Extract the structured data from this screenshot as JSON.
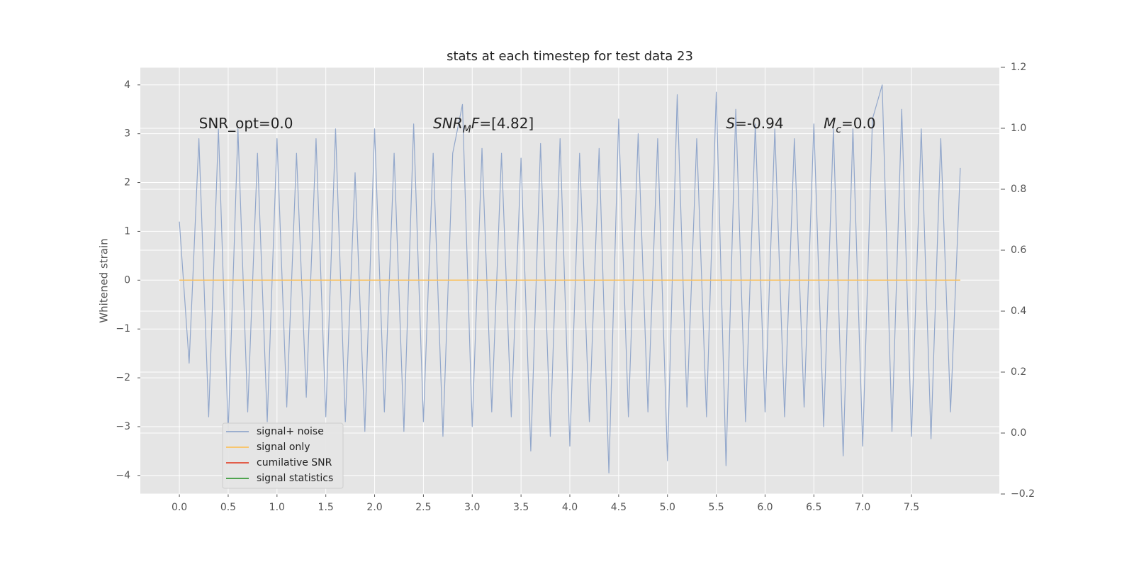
{
  "chart_data": {
    "type": "line",
    "title": "stats at each timestep for test data 23",
    "ylabel": "Whitened strain",
    "xlim": [
      -0.4,
      8.4
    ],
    "ylim": [
      -4.38,
      4.36
    ],
    "y2lim": [
      -0.2,
      1.2
    ],
    "xticks": [
      {
        "value": 0,
        "label": "0.0"
      },
      0.5,
      {
        "value": 1,
        "label": "1.0"
      },
      1.5,
      {
        "value": 2,
        "label": "2.0"
      },
      2.5,
      {
        "value": 3,
        "label": "3.0"
      },
      3.5,
      {
        "value": 4,
        "label": "4.0"
      },
      4.5,
      {
        "value": 5,
        "label": "5.0"
      },
      5.5,
      {
        "value": 6,
        "label": "6.0"
      },
      6.5,
      {
        "value": 7,
        "label": "7.0"
      },
      7.5
    ],
    "yticks": [
      {
        "value": -4,
        "label": "−4"
      },
      {
        "value": -3,
        "label": "−3"
      },
      {
        "value": -2,
        "label": "−2"
      },
      {
        "value": -1,
        "label": "−1"
      },
      0,
      1,
      2,
      3,
      4
    ],
    "y2ticks": [
      {
        "value": -0.2,
        "label": "−0.2"
      },
      {
        "value": 0,
        "label": "0.0"
      },
      0.2,
      0.4,
      0.6,
      0.8,
      {
        "value": 1,
        "label": "1.0"
      },
      1.2
    ],
    "grid": true,
    "legend": "lower left",
    "annotations": [
      {
        "parts": [
          {
            "text": "SNR_opt=0.0"
          }
        ]
      },
      {
        "parts": [
          {
            "text": "SNR",
            "style": "italic"
          },
          {
            "text": "M",
            "style": "sub"
          },
          {
            "text": "F",
            "style": "italic"
          },
          {
            "text": "=[4.82]"
          }
        ]
      },
      {
        "parts": [
          {
            "text": "S",
            "style": "italic"
          },
          {
            "text": "=-0.94"
          }
        ]
      },
      {
        "parts": [
          {
            "text": "M",
            "style": "italic"
          },
          {
            "text": "c",
            "style": "sub"
          },
          {
            "text": "=0.0"
          }
        ]
      }
    ],
    "series": [
      {
        "name": "signal+ noise",
        "color": "#92a7cb",
        "x": [
          0,
          0.1,
          0.2,
          0.3,
          0.4,
          0.5,
          0.6,
          0.7,
          0.8,
          0.9,
          1,
          1.1,
          1.2,
          1.3,
          1.4,
          1.5,
          1.6,
          1.7,
          1.8,
          1.9,
          2,
          2.1,
          2.2,
          2.3,
          2.4,
          2.5,
          2.6,
          2.7,
          2.8,
          2.9,
          3,
          3.1,
          3.2,
          3.3,
          3.4,
          3.5,
          3.6,
          3.7,
          3.8,
          3.9,
          4,
          4.1,
          4.2,
          4.3,
          4.4,
          4.5,
          4.6,
          4.7,
          4.8,
          4.9,
          5,
          5.1,
          5.2,
          5.3,
          5.4,
          5.5,
          5.6,
          5.7,
          5.8,
          5.9,
          6,
          6.1,
          6.2,
          6.3,
          6.4,
          6.5,
          6.6,
          6.7,
          6.8,
          6.9,
          7,
          7.1,
          7.2,
          7.3,
          7.4,
          7.5,
          7.6,
          7.7,
          7.8,
          7.9,
          8
        ],
        "values": [
          1.2,
          -1.7,
          2.9,
          -2.8,
          3.1,
          -3.1,
          3.1,
          -2.7,
          2.6,
          -2.9,
          2.9,
          -2.6,
          2.6,
          -2.4,
          2.9,
          -2.8,
          3.1,
          -2.9,
          2.2,
          -3.1,
          3.1,
          -2.7,
          2.6,
          -3.1,
          3.2,
          -2.9,
          2.6,
          -3.2,
          2.6,
          3.6,
          -3.0,
          2.7,
          -2.7,
          2.6,
          -2.8,
          2.5,
          -3.5,
          2.8,
          -3.2,
          2.9,
          -3.4,
          2.6,
          -2.9,
          2.7,
          -3.95,
          3.3,
          -2.8,
          3.0,
          -2.7,
          2.9,
          -3.7,
          3.8,
          -2.6,
          2.9,
          -2.8,
          3.85,
          -3.8,
          3.5,
          -2.9,
          3.2,
          -2.7,
          3.1,
          -2.8,
          2.9,
          -2.6,
          3.2,
          -3.0,
          3.1,
          -3.6,
          3.1,
          -3.4,
          3.3,
          4.0,
          -3.1,
          3.5,
          -3.2,
          3.1,
          -3.25,
          2.9,
          -2.7,
          2.3
        ]
      },
      {
        "name": "signal only",
        "color": "#fbc15e",
        "x": [
          0,
          8
        ],
        "values": [
          0,
          0
        ]
      },
      {
        "name": "cumilative SNR",
        "color": "#e24a33",
        "axis": "y2"
      },
      {
        "name": "signal statistics",
        "color": "#3a9a3a",
        "axis": "y2"
      }
    ]
  }
}
